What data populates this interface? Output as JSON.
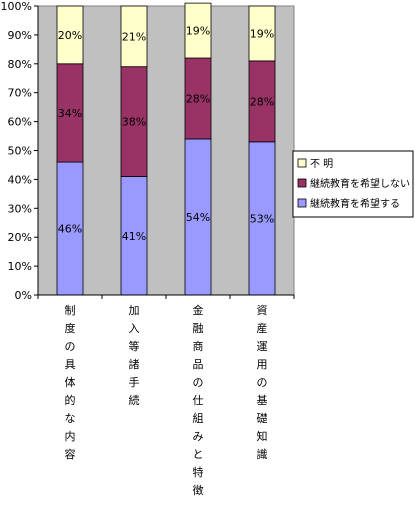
{
  "chart_data": {
    "type": "bar",
    "stacked": true,
    "percent": true,
    "categories": [
      "制度の具体的な内容",
      "加入等諸手続",
      "金融商品の仕組みと特徴",
      "資産運用の基礎知識"
    ],
    "series": [
      {
        "name": "継続教育を希望する",
        "color": "#9999ff",
        "values": [
          46,
          41,
          54,
          53
        ],
        "labels": [
          "46%",
          "41%",
          "54%",
          "53%"
        ]
      },
      {
        "name": "継続教育を希望しない",
        "color": "#993366",
        "values": [
          34,
          38,
          28,
          28
        ],
        "labels": [
          "34%",
          "38%",
          "28%",
          "28%"
        ]
      },
      {
        "name": "不 明",
        "color": "#ffffcc",
        "values": [
          20,
          21,
          19,
          19
        ],
        "labels": [
          "20%",
          "21%",
          "19%",
          "19%"
        ]
      }
    ],
    "y_ticks": [
      "0%",
      "10%",
      "20%",
      "30%",
      "40%",
      "50%",
      "60%",
      "70%",
      "80%",
      "90%",
      "100%"
    ],
    "ylim": [
      0,
      100
    ],
    "legend": {
      "placement": "right",
      "order": [
        "不 明",
        "継続教育を希望しない",
        "継続教育を希望する"
      ]
    },
    "plot_background": "#c0c0c0",
    "grid": false
  }
}
